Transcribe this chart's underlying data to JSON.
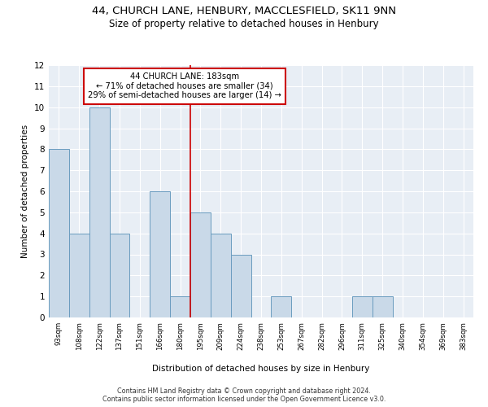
{
  "title1": "44, CHURCH LANE, HENBURY, MACCLESFIELD, SK11 9NN",
  "title2": "Size of property relative to detached houses in Henbury",
  "xlabel": "Distribution of detached houses by size in Henbury",
  "ylabel": "Number of detached properties",
  "bin_labels": [
    "93sqm",
    "108sqm",
    "122sqm",
    "137sqm",
    "151sqm",
    "166sqm",
    "180sqm",
    "195sqm",
    "209sqm",
    "224sqm",
    "238sqm",
    "253sqm",
    "267sqm",
    "282sqm",
    "296sqm",
    "311sqm",
    "325sqm",
    "340sqm",
    "354sqm",
    "369sqm",
    "383sqm"
  ],
  "counts": [
    8,
    4,
    10,
    4,
    0,
    6,
    1,
    5,
    4,
    3,
    0,
    1,
    0,
    0,
    0,
    1,
    1,
    0,
    0,
    0,
    0
  ],
  "property_size": 183,
  "property_bin_index": 6,
  "annotation_line1": "44 CHURCH LANE: 183sqm",
  "annotation_line2": "← 71% of detached houses are smaller (34)",
  "annotation_line3": "29% of semi-detached houses are larger (14) →",
  "bar_color": "#c9d9e8",
  "bar_edge_color": "#6a9cbf",
  "vline_color": "#cc0000",
  "annotation_box_color": "#cc0000",
  "bg_color": "#e8eef5",
  "grid_color": "white",
  "ylim": [
    0,
    12
  ],
  "yticks": [
    0,
    1,
    2,
    3,
    4,
    5,
    6,
    7,
    8,
    9,
    10,
    11,
    12
  ],
  "footer1": "Contains HM Land Registry data © Crown copyright and database right 2024.",
  "footer2": "Contains public sector information licensed under the Open Government Licence v3.0."
}
